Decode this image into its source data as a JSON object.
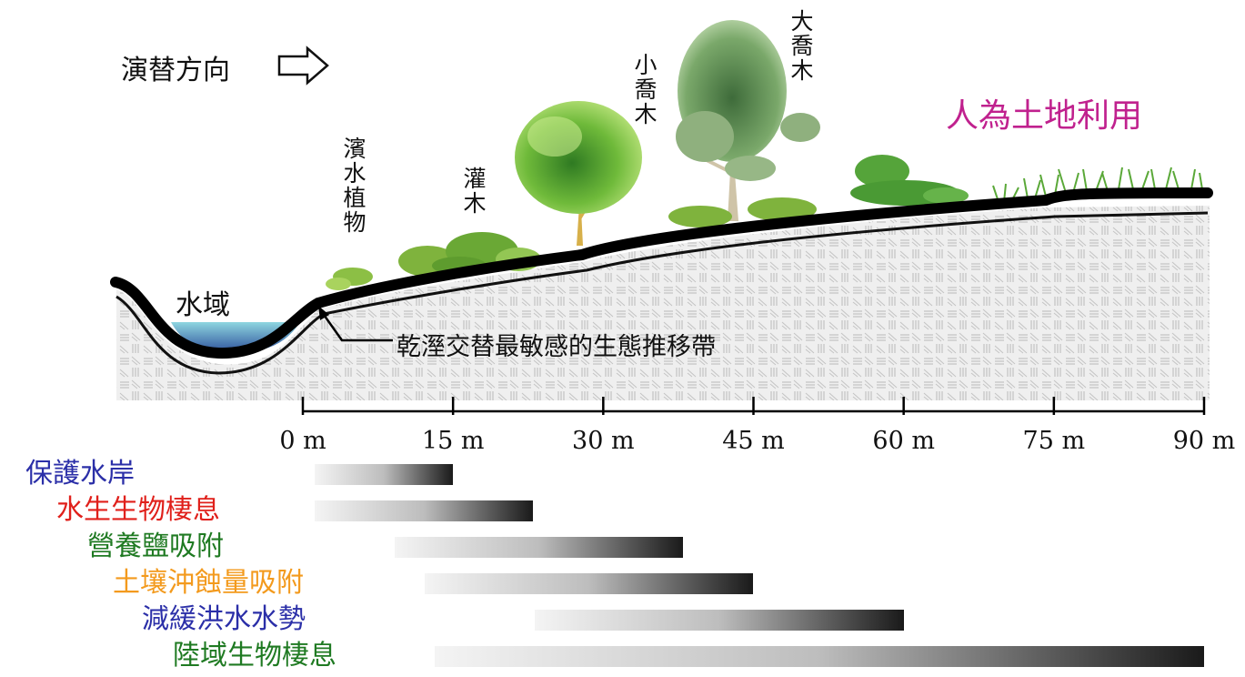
{
  "direction_label": "演替方向",
  "water_label": "水域",
  "human_use_label": "人為土地利用",
  "riparian_plants_label": "濱水植物",
  "shrub_label": "灌木",
  "small_tree_label": "小喬木",
  "large_tree_label": "大喬木",
  "ecotone_label": "乾溼交替最敏感的生態推移帶",
  "distance_ticks": [
    "0 m",
    "15 m",
    "30 m",
    "45 m",
    "60 m",
    "75 m",
    "90 m"
  ],
  "functions": [
    {
      "label": "保護水岸",
      "color": "#2b2fa8",
      "from_m": 0,
      "to_m": 15
    },
    {
      "label": "水生生物棲息",
      "color": "#e0201b",
      "from_m": 0,
      "to_m": 23
    },
    {
      "label": "營養鹽吸附",
      "color": "#1f7a22",
      "from_m": 8,
      "to_m": 38
    },
    {
      "label": "土壤沖蝕量吸附",
      "color": "#f39a1d",
      "from_m": 11,
      "to_m": 45
    },
    {
      "label": "減緩洪水水勢",
      "color": "#2b2fa8",
      "from_m": 22,
      "to_m": 60
    },
    {
      "label": "陸域生物棲息",
      "color": "#1f7a22",
      "from_m": 12,
      "to_m": 90
    }
  ],
  "colors": {
    "human_use": "#c0218e",
    "water_top": "#8ed6e0",
    "water_bottom": "#2c4f9a"
  }
}
